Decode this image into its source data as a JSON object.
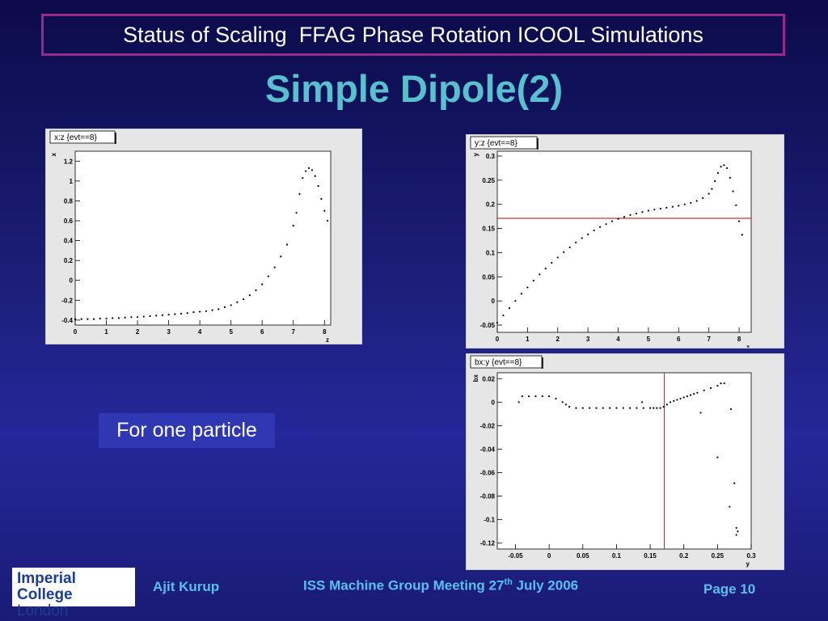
{
  "header": {
    "title": "Status of Scaling  FFAG Phase Rotation ICOOL Simulations"
  },
  "slide": {
    "title": "Simple Dipole(2)"
  },
  "callout": {
    "text": "For one particle"
  },
  "footer": {
    "author": "Ajit Kurup",
    "meeting_prefix": "ISS Machine Group Meeting 27",
    "meeting_sup": "th",
    "meeting_suffix": " July 2006",
    "page": "Page 10"
  },
  "logo": {
    "line1": "Imperial College",
    "line2": "London"
  },
  "colors": {
    "header_border": "#9a2a8a",
    "title": "#59c0cf",
    "cut_line": "#d23030",
    "footer": "#59c0ee"
  },
  "chart_data": [
    {
      "type": "scatter",
      "title": "x:z {evt==8}",
      "xlabel": "z",
      "ylabel": "x",
      "xlim": [
        0,
        8.2
      ],
      "ylim": [
        -0.45,
        1.3
      ],
      "xticks": [
        "0",
        "1",
        "2",
        "3",
        "4",
        "5",
        "6",
        "7",
        "8"
      ],
      "yticks": [
        "-0.4",
        "-0.2",
        "0",
        "0.2",
        "0.4",
        "0.6",
        "0.8",
        "1",
        "1.2"
      ],
      "x": [
        0,
        0.2,
        0.4,
        0.6,
        0.8,
        1,
        1.2,
        1.4,
        1.6,
        1.8,
        2,
        2.2,
        2.4,
        2.6,
        2.8,
        3,
        3.2,
        3.4,
        3.6,
        3.8,
        4,
        4.2,
        4.4,
        4.6,
        4.8,
        5,
        5.2,
        5.4,
        5.6,
        5.8,
        6,
        6.2,
        6.4,
        6.6,
        6.8,
        7,
        7.1,
        7.2,
        7.3,
        7.4,
        7.5,
        7.6,
        7.7,
        7.8,
        7.9,
        8,
        8.1
      ],
      "y": [
        -0.39,
        -0.39,
        -0.39,
        -0.39,
        -0.385,
        -0.385,
        -0.38,
        -0.38,
        -0.375,
        -0.37,
        -0.37,
        -0.365,
        -0.36,
        -0.355,
        -0.35,
        -0.345,
        -0.34,
        -0.335,
        -0.33,
        -0.32,
        -0.315,
        -0.31,
        -0.3,
        -0.29,
        -0.27,
        -0.25,
        -0.22,
        -0.19,
        -0.15,
        -0.1,
        -0.04,
        0.04,
        0.13,
        0.24,
        0.36,
        0.55,
        0.68,
        0.87,
        1.03,
        1.1,
        1.13,
        1.11,
        1.05,
        0.95,
        0.82,
        0.7,
        0.6
      ]
    },
    {
      "type": "scatter",
      "title": "y:z {evt==8}",
      "xlabel": "z",
      "ylabel": "y",
      "xlim": [
        0,
        8.4
      ],
      "ylim": [
        -0.065,
        0.31
      ],
      "xticks": [
        "0",
        "1",
        "2",
        "3",
        "4",
        "5",
        "6",
        "7",
        "8"
      ],
      "yticks": [
        "-0.05",
        "0",
        "0.05",
        "0.1",
        "0.15",
        "0.2",
        "0.25",
        "0.3"
      ],
      "cut_y": 0.171,
      "x": [
        0,
        0.2,
        0.4,
        0.6,
        0.8,
        1,
        1.2,
        1.4,
        1.6,
        1.8,
        2,
        2.2,
        2.4,
        2.6,
        2.8,
        3,
        3.2,
        3.4,
        3.6,
        3.8,
        4,
        4.2,
        4.4,
        4.6,
        4.8,
        5,
        5.2,
        5.4,
        5.6,
        5.8,
        6,
        6.2,
        6.4,
        6.6,
        6.8,
        7,
        7.1,
        7.2,
        7.3,
        7.4,
        7.5,
        7.6,
        7.7,
        7.8,
        7.9,
        8,
        8.1
      ],
      "y": [
        -0.045,
        -0.03,
        -0.015,
        0,
        0.015,
        0.028,
        0.042,
        0.055,
        0.067,
        0.079,
        0.09,
        0.101,
        0.111,
        0.121,
        0.13,
        0.138,
        0.146,
        0.153,
        0.159,
        0.165,
        0.17,
        0.174,
        0.178,
        0.181,
        0.184,
        0.187,
        0.189,
        0.191,
        0.193,
        0.195,
        0.197,
        0.2,
        0.203,
        0.207,
        0.213,
        0.222,
        0.232,
        0.248,
        0.265,
        0.278,
        0.281,
        0.275,
        0.255,
        0.227,
        0.198,
        0.165,
        0.137
      ]
    },
    {
      "type": "scatter",
      "title": "bx:y {evt==8}",
      "xlabel": "y",
      "ylabel": "bx",
      "xlim": [
        -0.077,
        0.3
      ],
      "ylim": [
        -0.125,
        0.025
      ],
      "xticks": [
        "-0.05",
        "0",
        "0.05",
        "0.1",
        "0.15",
        "0.2",
        "0.25",
        "0.3"
      ],
      "yticks": [
        "-0.12",
        "-0.1",
        "-0.08",
        "-0.06",
        "-0.04",
        "-0.02",
        "0",
        "0.02"
      ],
      "cut_x": 0.171,
      "x": [
        -0.045,
        -0.04,
        -0.03,
        -0.02,
        -0.01,
        0,
        0.01,
        0.02,
        0.025,
        0.03,
        0.04,
        0.05,
        0.06,
        0.07,
        0.08,
        0.09,
        0.1,
        0.11,
        0.12,
        0.13,
        0.14,
        0.15,
        0.155,
        0.16,
        0.165,
        0.17,
        0.175,
        0.18,
        0.185,
        0.19,
        0.195,
        0.2,
        0.205,
        0.21,
        0.215,
        0.22,
        0.23,
        0.24,
        0.25,
        0.26,
        0.138,
        0.225,
        0.25,
        0.268,
        0.275,
        0.278,
        0.28,
        0.278,
        0.27,
        0.255
      ],
      "y": [
        0,
        0.005,
        0.005,
        0.005,
        0.005,
        0.005,
        0.003,
        0,
        -0.002,
        -0.004,
        -0.005,
        -0.005,
        -0.005,
        -0.005,
        -0.005,
        -0.005,
        -0.005,
        -0.005,
        -0.005,
        -0.005,
        -0.005,
        -0.005,
        -0.005,
        -0.005,
        -0.005,
        -0.004,
        -0.002,
        0,
        0.001,
        0.002,
        0.003,
        0.004,
        0.005,
        0.006,
        0.007,
        0.008,
        0.01,
        0.012,
        0.014,
        0.016,
        0,
        -0.009,
        -0.047,
        -0.089,
        -0.069,
        -0.107,
        -0.11,
        -0.113,
        -0.006,
        0.016
      ]
    }
  ]
}
